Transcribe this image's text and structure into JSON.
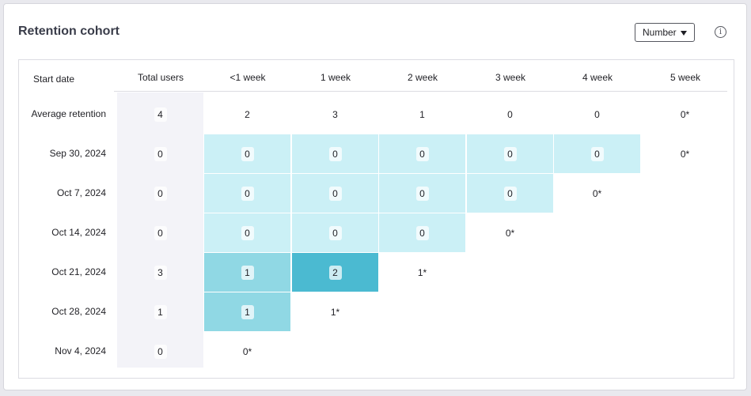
{
  "title": "Retention cohort",
  "dropdown": {
    "selected": "Number"
  },
  "info_glyph": "i",
  "colors": {
    "light": "#cbf0f6",
    "mid": "#90d8e4",
    "dark": "#4bbad1",
    "total_bg": "#f3f3f8"
  },
  "headers": [
    "Start date",
    "Total users",
    "<1 week",
    "1 week",
    "2 week",
    "3 week",
    "4 week",
    "5 week"
  ],
  "rows": [
    {
      "label": "Average retention",
      "total": "4",
      "cells": [
        {
          "v": "2",
          "s": "none"
        },
        {
          "v": "3",
          "s": "none"
        },
        {
          "v": "1",
          "s": "none"
        },
        {
          "v": "0",
          "s": "none"
        },
        {
          "v": "0",
          "s": "none"
        },
        {
          "v": "0*",
          "s": "none"
        }
      ]
    },
    {
      "label": "Sep 30, 2024",
      "total": "0",
      "cells": [
        {
          "v": "0",
          "s": "light"
        },
        {
          "v": "0",
          "s": "light"
        },
        {
          "v": "0",
          "s": "light"
        },
        {
          "v": "0",
          "s": "light"
        },
        {
          "v": "0",
          "s": "light"
        },
        {
          "v": "0*",
          "s": "none"
        }
      ]
    },
    {
      "label": "Oct 7, 2024",
      "total": "0",
      "cells": [
        {
          "v": "0",
          "s": "light"
        },
        {
          "v": "0",
          "s": "light"
        },
        {
          "v": "0",
          "s": "light"
        },
        {
          "v": "0",
          "s": "light"
        },
        {
          "v": "0*",
          "s": "none"
        }
      ]
    },
    {
      "label": "Oct 14, 2024",
      "total": "0",
      "cells": [
        {
          "v": "0",
          "s": "light"
        },
        {
          "v": "0",
          "s": "light"
        },
        {
          "v": "0",
          "s": "light"
        },
        {
          "v": "0*",
          "s": "none"
        }
      ]
    },
    {
      "label": "Oct 21, 2024",
      "total": "3",
      "cells": [
        {
          "v": "1",
          "s": "mid"
        },
        {
          "v": "2",
          "s": "dark"
        },
        {
          "v": "1*",
          "s": "none"
        }
      ]
    },
    {
      "label": "Oct 28, 2024",
      "total": "1",
      "cells": [
        {
          "v": "1",
          "s": "mid"
        },
        {
          "v": "1*",
          "s": "none"
        }
      ]
    },
    {
      "label": "Nov 4, 2024",
      "total": "0",
      "cells": [
        {
          "v": "0*",
          "s": "none"
        }
      ]
    }
  ]
}
